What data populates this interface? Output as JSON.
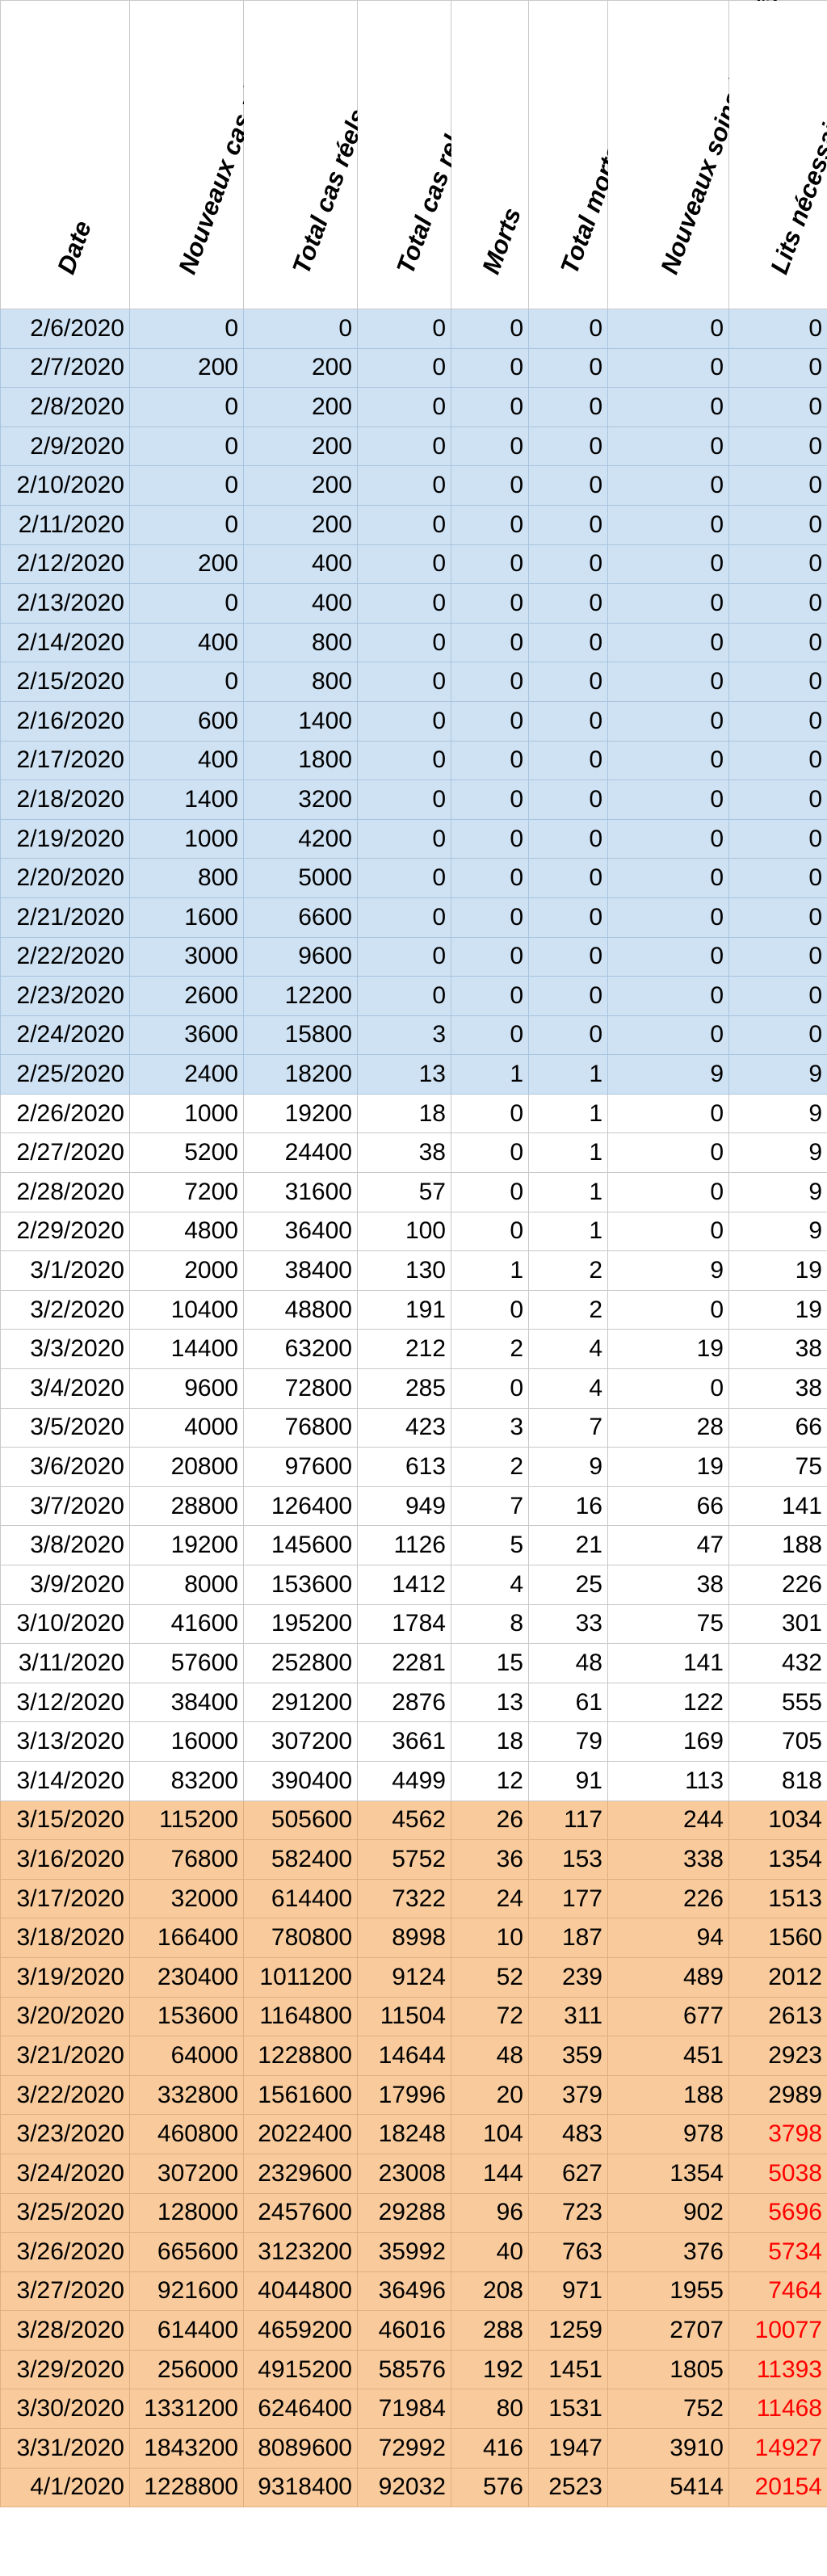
{
  "headers": [
    "Date",
    "Nouveaux cas réels",
    "Total cas réels",
    "Total cas relevés",
    "Morts",
    "Total morts",
    "Nouveaux soins intensifs",
    "Lits nécessaires"
  ],
  "colors": {
    "blue_band": "#cfe2f3",
    "orange_band": "#f9cb9c",
    "alert_text": "#ff0000"
  },
  "rows": [
    {
      "band": "blue",
      "cells": [
        "2/6/2020",
        "0",
        "0",
        "0",
        "0",
        "0",
        "0",
        "0"
      ]
    },
    {
      "band": "blue",
      "cells": [
        "2/7/2020",
        "200",
        "200",
        "0",
        "0",
        "0",
        "0",
        "0"
      ]
    },
    {
      "band": "blue",
      "cells": [
        "2/8/2020",
        "0",
        "200",
        "0",
        "0",
        "0",
        "0",
        "0"
      ]
    },
    {
      "band": "blue",
      "cells": [
        "2/9/2020",
        "0",
        "200",
        "0",
        "0",
        "0",
        "0",
        "0"
      ]
    },
    {
      "band": "blue",
      "cells": [
        "2/10/2020",
        "0",
        "200",
        "0",
        "0",
        "0",
        "0",
        "0"
      ]
    },
    {
      "band": "blue",
      "cells": [
        "2/11/2020",
        "0",
        "200",
        "0",
        "0",
        "0",
        "0",
        "0"
      ]
    },
    {
      "band": "blue",
      "cells": [
        "2/12/2020",
        "200",
        "400",
        "0",
        "0",
        "0",
        "0",
        "0"
      ]
    },
    {
      "band": "blue",
      "cells": [
        "2/13/2020",
        "0",
        "400",
        "0",
        "0",
        "0",
        "0",
        "0"
      ]
    },
    {
      "band": "blue",
      "cells": [
        "2/14/2020",
        "400",
        "800",
        "0",
        "0",
        "0",
        "0",
        "0"
      ]
    },
    {
      "band": "blue",
      "cells": [
        "2/15/2020",
        "0",
        "800",
        "0",
        "0",
        "0",
        "0",
        "0"
      ]
    },
    {
      "band": "blue",
      "cells": [
        "2/16/2020",
        "600",
        "1400",
        "0",
        "0",
        "0",
        "0",
        "0"
      ]
    },
    {
      "band": "blue",
      "cells": [
        "2/17/2020",
        "400",
        "1800",
        "0",
        "0",
        "0",
        "0",
        "0"
      ]
    },
    {
      "band": "blue",
      "cells": [
        "2/18/2020",
        "1400",
        "3200",
        "0",
        "0",
        "0",
        "0",
        "0"
      ]
    },
    {
      "band": "blue",
      "cells": [
        "2/19/2020",
        "1000",
        "4200",
        "0",
        "0",
        "0",
        "0",
        "0"
      ]
    },
    {
      "band": "blue",
      "cells": [
        "2/20/2020",
        "800",
        "5000",
        "0",
        "0",
        "0",
        "0",
        "0"
      ]
    },
    {
      "band": "blue",
      "cells": [
        "2/21/2020",
        "1600",
        "6600",
        "0",
        "0",
        "0",
        "0",
        "0"
      ]
    },
    {
      "band": "blue",
      "cells": [
        "2/22/2020",
        "3000",
        "9600",
        "0",
        "0",
        "0",
        "0",
        "0"
      ]
    },
    {
      "band": "blue",
      "cells": [
        "2/23/2020",
        "2600",
        "12200",
        "0",
        "0",
        "0",
        "0",
        "0"
      ]
    },
    {
      "band": "blue",
      "cells": [
        "2/24/2020",
        "3600",
        "15800",
        "3",
        "0",
        "0",
        "0",
        "0"
      ]
    },
    {
      "band": "blue",
      "cells": [
        "2/25/2020",
        "2400",
        "18200",
        "13",
        "1",
        "1",
        "9",
        "9"
      ]
    },
    {
      "band": "white",
      "cells": [
        "2/26/2020",
        "1000",
        "19200",
        "18",
        "0",
        "1",
        "0",
        "9"
      ]
    },
    {
      "band": "white",
      "cells": [
        "2/27/2020",
        "5200",
        "24400",
        "38",
        "0",
        "1",
        "0",
        "9"
      ]
    },
    {
      "band": "white",
      "cells": [
        "2/28/2020",
        "7200",
        "31600",
        "57",
        "0",
        "1",
        "0",
        "9"
      ]
    },
    {
      "band": "white",
      "cells": [
        "2/29/2020",
        "4800",
        "36400",
        "100",
        "0",
        "1",
        "0",
        "9"
      ]
    },
    {
      "band": "white",
      "cells": [
        "3/1/2020",
        "2000",
        "38400",
        "130",
        "1",
        "2",
        "9",
        "19"
      ]
    },
    {
      "band": "white",
      "cells": [
        "3/2/2020",
        "10400",
        "48800",
        "191",
        "0",
        "2",
        "0",
        "19"
      ]
    },
    {
      "band": "white",
      "cells": [
        "3/3/2020",
        "14400",
        "63200",
        "212",
        "2",
        "4",
        "19",
        "38"
      ]
    },
    {
      "band": "white",
      "cells": [
        "3/4/2020",
        "9600",
        "72800",
        "285",
        "0",
        "4",
        "0",
        "38"
      ]
    },
    {
      "band": "white",
      "cells": [
        "3/5/2020",
        "4000",
        "76800",
        "423",
        "3",
        "7",
        "28",
        "66"
      ]
    },
    {
      "band": "white",
      "cells": [
        "3/6/2020",
        "20800",
        "97600",
        "613",
        "2",
        "9",
        "19",
        "75"
      ]
    },
    {
      "band": "white",
      "cells": [
        "3/7/2020",
        "28800",
        "126400",
        "949",
        "7",
        "16",
        "66",
        "141"
      ]
    },
    {
      "band": "white",
      "cells": [
        "3/8/2020",
        "19200",
        "145600",
        "1126",
        "5",
        "21",
        "47",
        "188"
      ]
    },
    {
      "band": "white",
      "cells": [
        "3/9/2020",
        "8000",
        "153600",
        "1412",
        "4",
        "25",
        "38",
        "226"
      ]
    },
    {
      "band": "white",
      "cells": [
        "3/10/2020",
        "41600",
        "195200",
        "1784",
        "8",
        "33",
        "75",
        "301"
      ]
    },
    {
      "band": "white",
      "cells": [
        "3/11/2020",
        "57600",
        "252800",
        "2281",
        "15",
        "48",
        "141",
        "432"
      ]
    },
    {
      "band": "white",
      "cells": [
        "3/12/2020",
        "38400",
        "291200",
        "2876",
        "13",
        "61",
        "122",
        "555"
      ]
    },
    {
      "band": "white",
      "cells": [
        "3/13/2020",
        "16000",
        "307200",
        "3661",
        "18",
        "79",
        "169",
        "705"
      ]
    },
    {
      "band": "white",
      "cells": [
        "3/14/2020",
        "83200",
        "390400",
        "4499",
        "12",
        "91",
        "113",
        "818"
      ]
    },
    {
      "band": "orange",
      "cells": [
        "3/15/2020",
        "115200",
        "505600",
        "4562",
        "26",
        "117",
        "244",
        "1034"
      ]
    },
    {
      "band": "orange",
      "cells": [
        "3/16/2020",
        "76800",
        "582400",
        "5752",
        "36",
        "153",
        "338",
        "1354"
      ]
    },
    {
      "band": "orange",
      "cells": [
        "3/17/2020",
        "32000",
        "614400",
        "7322",
        "24",
        "177",
        "226",
        "1513"
      ]
    },
    {
      "band": "orange",
      "cells": [
        "3/18/2020",
        "166400",
        "780800",
        "8998",
        "10",
        "187",
        "94",
        "1560"
      ]
    },
    {
      "band": "orange",
      "cells": [
        "3/19/2020",
        "230400",
        "1011200",
        "9124",
        "52",
        "239",
        "489",
        "2012"
      ]
    },
    {
      "band": "orange",
      "cells": [
        "3/20/2020",
        "153600",
        "1164800",
        "11504",
        "72",
        "311",
        "677",
        "2613"
      ]
    },
    {
      "band": "orange",
      "cells": [
        "3/21/2020",
        "64000",
        "1228800",
        "14644",
        "48",
        "359",
        "451",
        "2923"
      ]
    },
    {
      "band": "orange",
      "cells": [
        "3/22/2020",
        "332800",
        "1561600",
        "17996",
        "20",
        "379",
        "188",
        "2989"
      ]
    },
    {
      "band": "orange",
      "red_last": true,
      "cells": [
        "3/23/2020",
        "460800",
        "2022400",
        "18248",
        "104",
        "483",
        "978",
        "3798"
      ]
    },
    {
      "band": "orange",
      "red_last": true,
      "cells": [
        "3/24/2020",
        "307200",
        "2329600",
        "23008",
        "144",
        "627",
        "1354",
        "5038"
      ]
    },
    {
      "band": "orange",
      "red_last": true,
      "cells": [
        "3/25/2020",
        "128000",
        "2457600",
        "29288",
        "96",
        "723",
        "902",
        "5696"
      ]
    },
    {
      "band": "orange",
      "red_last": true,
      "cells": [
        "3/26/2020",
        "665600",
        "3123200",
        "35992",
        "40",
        "763",
        "376",
        "5734"
      ]
    },
    {
      "band": "orange",
      "red_last": true,
      "cells": [
        "3/27/2020",
        "921600",
        "4044800",
        "36496",
        "208",
        "971",
        "1955",
        "7464"
      ]
    },
    {
      "band": "orange",
      "red_last": true,
      "cells": [
        "3/28/2020",
        "614400",
        "4659200",
        "46016",
        "288",
        "1259",
        "2707",
        "10077"
      ]
    },
    {
      "band": "orange",
      "red_last": true,
      "cells": [
        "3/29/2020",
        "256000",
        "4915200",
        "58576",
        "192",
        "1451",
        "1805",
        "11393"
      ]
    },
    {
      "band": "orange",
      "red_last": true,
      "cells": [
        "3/30/2020",
        "1331200",
        "6246400",
        "71984",
        "80",
        "1531",
        "752",
        "11468"
      ]
    },
    {
      "band": "orange",
      "red_last": true,
      "cells": [
        "3/31/2020",
        "1843200",
        "8089600",
        "72992",
        "416",
        "1947",
        "3910",
        "14927"
      ]
    },
    {
      "band": "orange",
      "red_last": true,
      "cells": [
        "4/1/2020",
        "1228800",
        "9318400",
        "92032",
        "576",
        "2523",
        "5414",
        "20154"
      ]
    }
  ]
}
